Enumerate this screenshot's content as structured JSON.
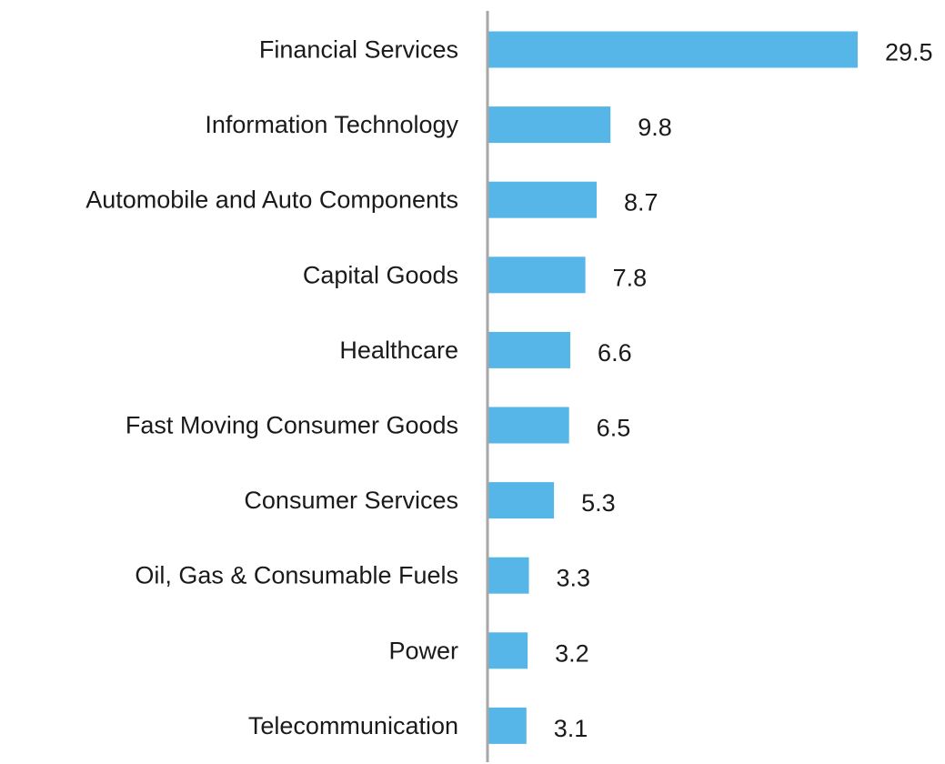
{
  "chart_data": {
    "type": "bar",
    "orientation": "horizontal",
    "title": "",
    "xlabel": "",
    "ylabel": "",
    "categories": [
      "Financial Services",
      "Information Technology",
      "Automobile and Auto Components",
      "Capital Goods",
      "Healthcare",
      "Fast Moving Consumer Goods",
      "Consumer Services",
      "Oil, Gas & Consumable Fuels",
      "Power",
      "Telecommunication"
    ],
    "values": [
      29.5,
      9.8,
      8.7,
      7.8,
      6.6,
      6.5,
      5.3,
      3.3,
      3.2,
      3.1
    ],
    "value_labels": [
      "29.5",
      "9.8",
      "8.7",
      "7.8",
      "6.6",
      "6.5",
      "5.3",
      "3.3",
      "3.2",
      "3.1"
    ],
    "xlim": [
      0,
      29.5
    ],
    "grid": false,
    "legend": "none",
    "bar_color": "#56b6e7",
    "axis_color": "#a6a6a6"
  }
}
